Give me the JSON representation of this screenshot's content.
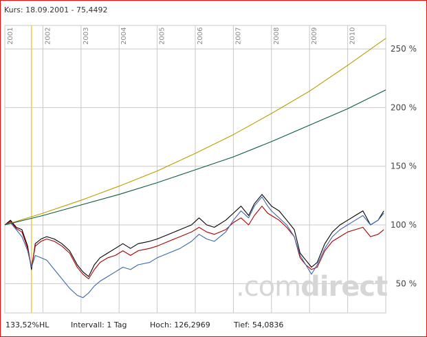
{
  "header": {
    "kurs_text": "Kurs: 18.09.2001 - 75,4492"
  },
  "footer": {
    "performance": "133,52%HL",
    "interval": "Intervall: 1 Tag",
    "high": "Hoch: 126,2969",
    "low": "Tief: 54,0836"
  },
  "watermark": {
    "light": ".com",
    "bold": "direct"
  },
  "colors": {
    "border": "#ff0000",
    "grid": "#c8c8c8",
    "marker": "#f5d020",
    "black_series": "#000000",
    "red_series": "#aa0000",
    "blue_series": "#3a66b0",
    "gold_curve": "#b8a000",
    "green_curve": "#0a5a3a"
  },
  "chart_data": {
    "type": "line",
    "x_tick_labels": [
      "2001",
      "2002",
      "2003",
      "2004",
      "2005",
      "2006",
      "2007",
      "2008",
      "2009",
      "2010"
    ],
    "y_tick_labels": [
      "250 %",
      "200 %",
      "150 %",
      "100 %",
      "50 %"
    ],
    "y_ticks": [
      250,
      200,
      150,
      100,
      50
    ],
    "xlim": [
      2001.0,
      2011.0
    ],
    "ylim": [
      25,
      270
    ],
    "grid": true,
    "marker_line_x": 2001.7,
    "series": [
      {
        "color_key": "black_series",
        "points": [
          [
            2001.0,
            100
          ],
          [
            2001.15,
            104
          ],
          [
            2001.3,
            98
          ],
          [
            2001.45,
            96
          ],
          [
            2001.6,
            82
          ],
          [
            2001.7,
            62
          ],
          [
            2001.8,
            84
          ],
          [
            2001.95,
            88
          ],
          [
            2002.1,
            90
          ],
          [
            2002.3,
            88
          ],
          [
            2002.5,
            84
          ],
          [
            2002.7,
            78
          ],
          [
            2002.9,
            66
          ],
          [
            2003.05,
            60
          ],
          [
            2003.2,
            56
          ],
          [
            2003.35,
            66
          ],
          [
            2003.5,
            72
          ],
          [
            2003.7,
            76
          ],
          [
            2003.9,
            80
          ],
          [
            2004.1,
            84
          ],
          [
            2004.3,
            80
          ],
          [
            2004.5,
            84
          ],
          [
            2004.8,
            86
          ],
          [
            2005.0,
            88
          ],
          [
            2005.3,
            92
          ],
          [
            2005.6,
            96
          ],
          [
            2005.9,
            100
          ],
          [
            2006.1,
            106
          ],
          [
            2006.3,
            100
          ],
          [
            2006.5,
            98
          ],
          [
            2006.8,
            104
          ],
          [
            2007.0,
            110
          ],
          [
            2007.2,
            116
          ],
          [
            2007.4,
            108
          ],
          [
            2007.55,
            118
          ],
          [
            2007.75,
            126
          ],
          [
            2007.9,
            120
          ],
          [
            2008.0,
            116
          ],
          [
            2008.2,
            112
          ],
          [
            2008.4,
            104
          ],
          [
            2008.6,
            96
          ],
          [
            2008.75,
            76
          ],
          [
            2008.9,
            70
          ],
          [
            2009.05,
            64
          ],
          [
            2009.2,
            68
          ],
          [
            2009.4,
            84
          ],
          [
            2009.6,
            94
          ],
          [
            2009.8,
            100
          ],
          [
            2010.0,
            104
          ],
          [
            2010.2,
            108
          ],
          [
            2010.4,
            112
          ],
          [
            2010.6,
            100
          ],
          [
            2010.8,
            104
          ],
          [
            2010.95,
            112
          ]
        ]
      },
      {
        "color_key": "red_series",
        "points": [
          [
            2001.0,
            100
          ],
          [
            2001.15,
            103
          ],
          [
            2001.3,
            97
          ],
          [
            2001.45,
            94
          ],
          [
            2001.6,
            80
          ],
          [
            2001.7,
            64
          ],
          [
            2001.8,
            82
          ],
          [
            2001.95,
            86
          ],
          [
            2002.1,
            88
          ],
          [
            2002.3,
            86
          ],
          [
            2002.5,
            82
          ],
          [
            2002.7,
            76
          ],
          [
            2002.9,
            64
          ],
          [
            2003.05,
            58
          ],
          [
            2003.2,
            54
          ],
          [
            2003.35,
            62
          ],
          [
            2003.5,
            68
          ],
          [
            2003.7,
            72
          ],
          [
            2003.9,
            74
          ],
          [
            2004.1,
            78
          ],
          [
            2004.3,
            74
          ],
          [
            2004.5,
            78
          ],
          [
            2004.8,
            80
          ],
          [
            2005.0,
            82
          ],
          [
            2005.3,
            86
          ],
          [
            2005.6,
            90
          ],
          [
            2005.9,
            94
          ],
          [
            2006.1,
            98
          ],
          [
            2006.3,
            94
          ],
          [
            2006.5,
            92
          ],
          [
            2006.8,
            96
          ],
          [
            2007.0,
            102
          ],
          [
            2007.2,
            106
          ],
          [
            2007.4,
            100
          ],
          [
            2007.55,
            108
          ],
          [
            2007.75,
            116
          ],
          [
            2007.9,
            110
          ],
          [
            2008.0,
            108
          ],
          [
            2008.2,
            104
          ],
          [
            2008.4,
            98
          ],
          [
            2008.6,
            90
          ],
          [
            2008.75,
            72
          ],
          [
            2008.9,
            66
          ],
          [
            2009.05,
            62
          ],
          [
            2009.2,
            64
          ],
          [
            2009.4,
            78
          ],
          [
            2009.6,
            86
          ],
          [
            2009.8,
            90
          ],
          [
            2010.0,
            94
          ],
          [
            2010.2,
            96
          ],
          [
            2010.4,
            98
          ],
          [
            2010.6,
            90
          ],
          [
            2010.8,
            92
          ],
          [
            2010.95,
            96
          ]
        ]
      },
      {
        "color_key": "blue_series",
        "points": [
          [
            2001.0,
            100
          ],
          [
            2001.15,
            102
          ],
          [
            2001.3,
            96
          ],
          [
            2001.45,
            90
          ],
          [
            2001.6,
            78
          ],
          [
            2001.7,
            64
          ],
          [
            2001.8,
            74
          ],
          [
            2001.95,
            72
          ],
          [
            2002.1,
            70
          ],
          [
            2002.3,
            62
          ],
          [
            2002.5,
            54
          ],
          [
            2002.7,
            46
          ],
          [
            2002.9,
            40
          ],
          [
            2003.05,
            38
          ],
          [
            2003.2,
            42
          ],
          [
            2003.35,
            48
          ],
          [
            2003.5,
            52
          ],
          [
            2003.7,
            56
          ],
          [
            2003.9,
            60
          ],
          [
            2004.1,
            64
          ],
          [
            2004.3,
            62
          ],
          [
            2004.5,
            66
          ],
          [
            2004.8,
            68
          ],
          [
            2005.0,
            72
          ],
          [
            2005.3,
            76
          ],
          [
            2005.6,
            80
          ],
          [
            2005.9,
            86
          ],
          [
            2006.1,
            92
          ],
          [
            2006.3,
            88
          ],
          [
            2006.5,
            86
          ],
          [
            2006.8,
            94
          ],
          [
            2007.0,
            104
          ],
          [
            2007.2,
            112
          ],
          [
            2007.4,
            106
          ],
          [
            2007.55,
            116
          ],
          [
            2007.75,
            124
          ],
          [
            2007.9,
            116
          ],
          [
            2008.0,
            112
          ],
          [
            2008.2,
            106
          ],
          [
            2008.4,
            100
          ],
          [
            2008.6,
            90
          ],
          [
            2008.75,
            74
          ],
          [
            2008.9,
            66
          ],
          [
            2009.05,
            58
          ],
          [
            2009.2,
            66
          ],
          [
            2009.4,
            80
          ],
          [
            2009.6,
            90
          ],
          [
            2009.8,
            96
          ],
          [
            2010.0,
            100
          ],
          [
            2010.2,
            104
          ],
          [
            2010.4,
            108
          ],
          [
            2010.6,
            100
          ],
          [
            2010.8,
            104
          ],
          [
            2010.95,
            110
          ]
        ]
      },
      {
        "color_key": "gold_curve",
        "points": [
          [
            2001.0,
            100
          ],
          [
            2002.0,
            110
          ],
          [
            2003.0,
            121
          ],
          [
            2004.0,
            133
          ],
          [
            2005.0,
            146
          ],
          [
            2006.0,
            161
          ],
          [
            2007.0,
            177
          ],
          [
            2008.0,
            195
          ],
          [
            2009.0,
            214
          ],
          [
            2010.0,
            236
          ],
          [
            2011.0,
            259
          ]
        ]
      },
      {
        "color_key": "green_curve",
        "points": [
          [
            2001.0,
            100
          ],
          [
            2002.0,
            108
          ],
          [
            2003.0,
            117
          ],
          [
            2004.0,
            126
          ],
          [
            2005.0,
            136
          ],
          [
            2006.0,
            147
          ],
          [
            2007.0,
            158
          ],
          [
            2008.0,
            171
          ],
          [
            2009.0,
            185
          ],
          [
            2010.0,
            199
          ],
          [
            2011.0,
            215
          ]
        ]
      }
    ]
  }
}
